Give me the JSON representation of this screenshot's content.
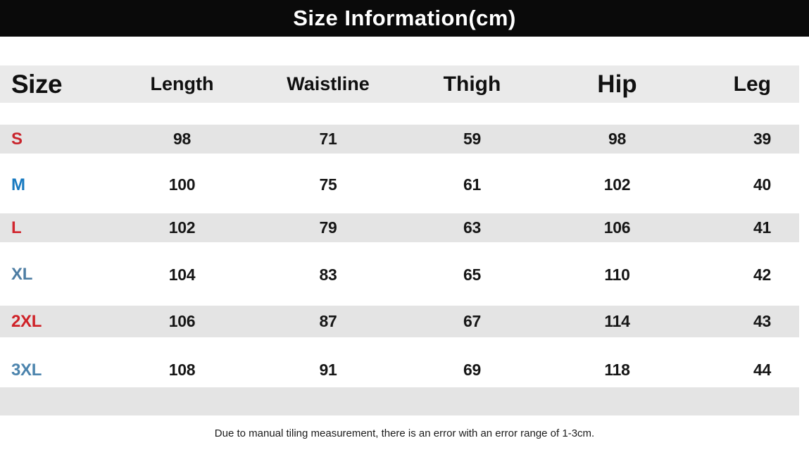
{
  "banner": {
    "title": "Size Information(cm)",
    "bg": "#0a0a0a",
    "text_color": "#ffffff"
  },
  "table": {
    "columns": [
      "Size",
      "Length",
      "Waistline",
      "Thigh",
      "Hip",
      "Leg"
    ],
    "rows": [
      {
        "size": "S",
        "color": "#c9242c",
        "shaded": true,
        "values": [
          "98",
          "71",
          "59",
          "98",
          "39"
        ]
      },
      {
        "size": "M",
        "color": "#1779c0",
        "shaded": false,
        "values": [
          "100",
          "75",
          "61",
          "102",
          "40"
        ]
      },
      {
        "size": "L",
        "color": "#d1262e",
        "shaded": true,
        "values": [
          "102",
          "79",
          "63",
          "106",
          "41"
        ]
      },
      {
        "size": "XL",
        "color": "#4d7da3",
        "shaded": false,
        "values": [
          "104",
          "83",
          "65",
          "110",
          "42"
        ]
      },
      {
        "size": "2XL",
        "color": "#cf2127",
        "shaded": true,
        "values": [
          "106",
          "87",
          "67",
          "114",
          "43"
        ]
      },
      {
        "size": "3XL",
        "color": "#4c84ad",
        "shaded": false,
        "values": [
          "108",
          "91",
          "69",
          "118",
          "44"
        ]
      }
    ]
  },
  "footer": {
    "disclaimer": "Due to manual tiling measurement, there is an error with an error range of 1-3cm."
  },
  "colors": {
    "row_shade": "#e4e4e4",
    "header_shade": "#eaeaea",
    "value_color": "#161616"
  }
}
